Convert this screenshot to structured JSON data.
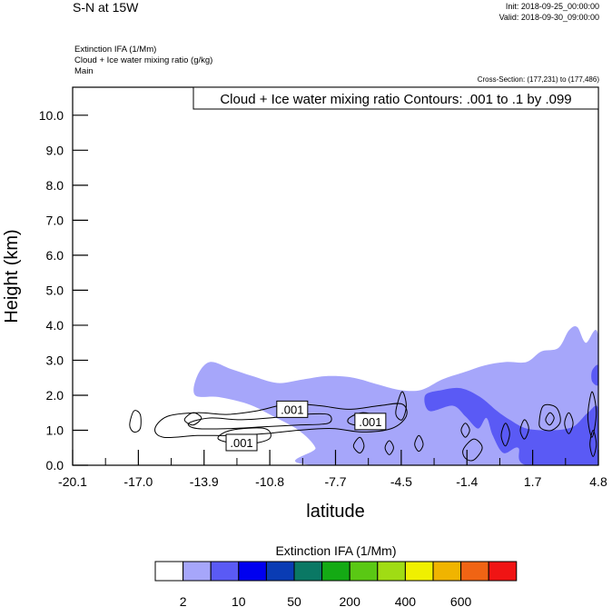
{
  "header": {
    "title": "S-N at 15W",
    "init": "Init: 2018-09-25_00:00:00",
    "valid": "Valid: 2018-09-30_09:00:00",
    "fields": [
      "Extinction IFA   (1/Mm)",
      "Cloud + Ice water mixing ratio   (g/kg)",
      "Main"
    ],
    "cross_section": "Cross-Section: (177,231) to (177,486)"
  },
  "chart_data": {
    "type": "contour",
    "title": "Cloud + Ice water mixing ratio Contours: .001 to .1 by .099",
    "xlabel": "latitude",
    "ylabel": "Height (km)",
    "xlim": [
      -20.1,
      4.8
    ],
    "ylim": [
      0.0,
      10.8
    ],
    "x_ticks": [
      "-20.1",
      "-17.0",
      "-13.9",
      "-10.8",
      "-7.7",
      "-4.5",
      "-1.4",
      "1.7",
      "4.8"
    ],
    "y_ticks": [
      "0.0",
      "1.0",
      "2.0",
      "3.0",
      "4.0",
      "5.0",
      "6.0",
      "7.0",
      "8.0",
      "9.0",
      "10.0"
    ],
    "contour_labels": [
      {
        "text": ".001",
        "x": -9.7,
        "y": 1.6
      },
      {
        "text": ".001",
        "x": -6.0,
        "y": 1.25
      },
      {
        "text": ".001",
        "x": -12.1,
        "y": 0.65
      }
    ],
    "colorbar": {
      "title": "Extinction IFA  (1/Mm)",
      "colors": [
        "#ffffff",
        "#a6a6fa",
        "#5a5af5",
        "#0000f0",
        "#0a3cb4",
        "#0a7864",
        "#14aa14",
        "#5ac814",
        "#a0dc14",
        "#f0f000",
        "#f0b400",
        "#f06414",
        "#f01414"
      ],
      "tick_labels": [
        "2",
        "10",
        "50",
        "200",
        "400",
        "600"
      ]
    },
    "shaded_regions": [
      {
        "level": "light",
        "color": "#a6a6fa",
        "points": [
          [
            -14.3,
            2.0
          ],
          [
            -14.2,
            2.55
          ],
          [
            -13.6,
            2.95
          ],
          [
            -12.6,
            2.75
          ],
          [
            -11.6,
            2.55
          ],
          [
            -10.4,
            2.35
          ],
          [
            -9.2,
            2.45
          ],
          [
            -8.0,
            2.55
          ],
          [
            -6.8,
            2.5
          ],
          [
            -5.6,
            2.3
          ],
          [
            -4.6,
            2.15
          ],
          [
            -3.6,
            2.15
          ],
          [
            -2.6,
            2.45
          ],
          [
            -1.6,
            2.65
          ],
          [
            -0.6,
            2.85
          ],
          [
            0.4,
            2.95
          ],
          [
            1.4,
            2.95
          ],
          [
            2.1,
            3.25
          ],
          [
            2.9,
            3.35
          ],
          [
            3.4,
            3.85
          ],
          [
            3.8,
            3.95
          ],
          [
            4.2,
            3.5
          ],
          [
            4.8,
            3.65
          ],
          [
            4.8,
            0.0
          ],
          [
            -8.6,
            0.0
          ],
          [
            -8.6,
            0.5
          ],
          [
            -9.4,
            1.0
          ],
          [
            -10.6,
            1.4
          ],
          [
            -11.8,
            1.75
          ],
          [
            -13.2,
            1.95
          ]
        ]
      },
      {
        "level": "medium",
        "color": "#5a5af5",
        "points": [
          [
            -3.4,
            2.0
          ],
          [
            -2.6,
            2.15
          ],
          [
            -1.7,
            2.2
          ],
          [
            -0.8,
            1.95
          ],
          [
            0.0,
            1.55
          ],
          [
            0.6,
            1.3
          ],
          [
            1.4,
            1.05
          ],
          [
            2.6,
            1.0
          ],
          [
            3.6,
            1.1
          ],
          [
            4.3,
            1.5
          ],
          [
            4.8,
            1.6
          ],
          [
            4.8,
            0.0
          ],
          [
            1.4,
            0.0
          ],
          [
            1.0,
            0.5
          ],
          [
            0.3,
            0.35
          ],
          [
            -0.2,
            0.85
          ],
          [
            -0.5,
            1.35
          ],
          [
            -0.9,
            1.05
          ],
          [
            -1.5,
            1.4
          ],
          [
            -2.1,
            1.7
          ],
          [
            -3.2,
            1.55
          ]
        ]
      },
      {
        "level": "medium",
        "color": "#5a5af5",
        "points": [
          [
            4.5,
            2.7
          ],
          [
            4.8,
            2.85
          ],
          [
            4.8,
            2.3
          ],
          [
            4.5,
            2.4
          ]
        ]
      }
    ],
    "contours": [
      [
        [
          -17.4,
          1.15
        ],
        [
          -17.2,
          1.55
        ],
        [
          -16.9,
          1.45
        ],
        [
          -16.9,
          1.05
        ],
        [
          -17.2,
          0.95
        ]
      ],
      [
        [
          -16.2,
          1.05
        ],
        [
          -15.6,
          1.4
        ],
        [
          -14.2,
          1.5
        ],
        [
          -12.8,
          1.45
        ],
        [
          -11.4,
          1.55
        ],
        [
          -9.9,
          1.75
        ],
        [
          -8.4,
          1.7
        ],
        [
          -7.0,
          1.6
        ],
        [
          -5.6,
          1.7
        ],
        [
          -4.5,
          1.75
        ],
        [
          -4.3,
          1.4
        ],
        [
          -5.0,
          1.05
        ],
        [
          -6.4,
          0.95
        ],
        [
          -7.8,
          1.05
        ],
        [
          -9.4,
          1.0
        ],
        [
          -11.0,
          0.9
        ],
        [
          -12.6,
          0.85
        ],
        [
          -14.2,
          0.85
        ],
        [
          -15.8,
          0.8
        ]
      ],
      [
        [
          -14.6,
          1.2
        ],
        [
          -13.6,
          1.35
        ],
        [
          -12.2,
          1.3
        ],
        [
          -10.8,
          1.35
        ],
        [
          -9.2,
          1.45
        ],
        [
          -8.0,
          1.45
        ],
        [
          -8.0,
          1.2
        ],
        [
          -9.4,
          1.15
        ],
        [
          -11.0,
          1.1
        ],
        [
          -12.6,
          1.05
        ],
        [
          -14.2,
          1.05
        ]
      ],
      [
        [
          -14.8,
          1.3
        ],
        [
          -14.4,
          1.5
        ],
        [
          -14.0,
          1.35
        ],
        [
          -14.4,
          1.15
        ]
      ],
      [
        [
          -13.2,
          0.75
        ],
        [
          -12.6,
          1.0
        ],
        [
          -11.0,
          1.05
        ],
        [
          -10.8,
          0.75
        ],
        [
          -12.0,
          0.6
        ]
      ],
      [
        [
          -7.0,
          1.35
        ],
        [
          -6.4,
          1.5
        ],
        [
          -5.8,
          1.4
        ],
        [
          -6.4,
          1.15
        ],
        [
          -7.0,
          1.2
        ]
      ],
      [
        [
          -6.8,
          0.55
        ],
        [
          -6.5,
          0.8
        ],
        [
          -6.3,
          0.55
        ],
        [
          -6.5,
          0.35
        ]
      ],
      [
        [
          -4.8,
          1.5
        ],
        [
          -4.5,
          2.1
        ],
        [
          -4.3,
          1.7
        ],
        [
          -4.5,
          1.3
        ]
      ],
      [
        [
          -5.3,
          0.5
        ],
        [
          -5.1,
          0.7
        ],
        [
          -4.9,
          0.5
        ],
        [
          -5.1,
          0.3
        ]
      ],
      [
        [
          -3.9,
          0.6
        ],
        [
          -3.7,
          0.85
        ],
        [
          -3.5,
          0.6
        ],
        [
          -3.7,
          0.4
        ]
      ],
      [
        [
          -1.7,
          1.0
        ],
        [
          -1.5,
          1.2
        ],
        [
          -1.3,
          1.0
        ],
        [
          -1.5,
          0.8
        ]
      ],
      [
        [
          -1.6,
          0.45
        ],
        [
          -1.1,
          0.75
        ],
        [
          -0.7,
          0.5
        ],
        [
          -1.1,
          0.15
        ],
        [
          -1.5,
          0.2
        ]
      ],
      [
        [
          0.2,
          0.85
        ],
        [
          0.4,
          1.2
        ],
        [
          0.6,
          0.9
        ],
        [
          0.4,
          0.55
        ]
      ],
      [
        [
          1.1,
          1.0
        ],
        [
          1.3,
          1.3
        ],
        [
          1.5,
          1.05
        ],
        [
          1.3,
          0.75
        ]
      ],
      [
        [
          2.0,
          1.25
        ],
        [
          2.2,
          1.7
        ],
        [
          2.8,
          1.65
        ],
        [
          3.0,
          1.25
        ],
        [
          2.6,
          1.0
        ],
        [
          2.1,
          1.05
        ]
      ],
      [
        [
          2.3,
          1.3
        ],
        [
          2.5,
          1.5
        ],
        [
          2.7,
          1.35
        ],
        [
          2.5,
          1.15
        ]
      ],
      [
        [
          3.2,
          1.2
        ],
        [
          3.4,
          1.5
        ],
        [
          3.6,
          1.2
        ],
        [
          3.4,
          0.9
        ]
      ],
      [
        [
          4.3,
          1.4
        ],
        [
          4.5,
          2.1
        ],
        [
          4.7,
          1.5
        ],
        [
          4.5,
          0.8
        ]
      ],
      [
        [
          4.4,
          0.6
        ],
        [
          4.55,
          1.0
        ],
        [
          4.7,
          0.6
        ],
        [
          4.55,
          0.25
        ]
      ]
    ]
  }
}
